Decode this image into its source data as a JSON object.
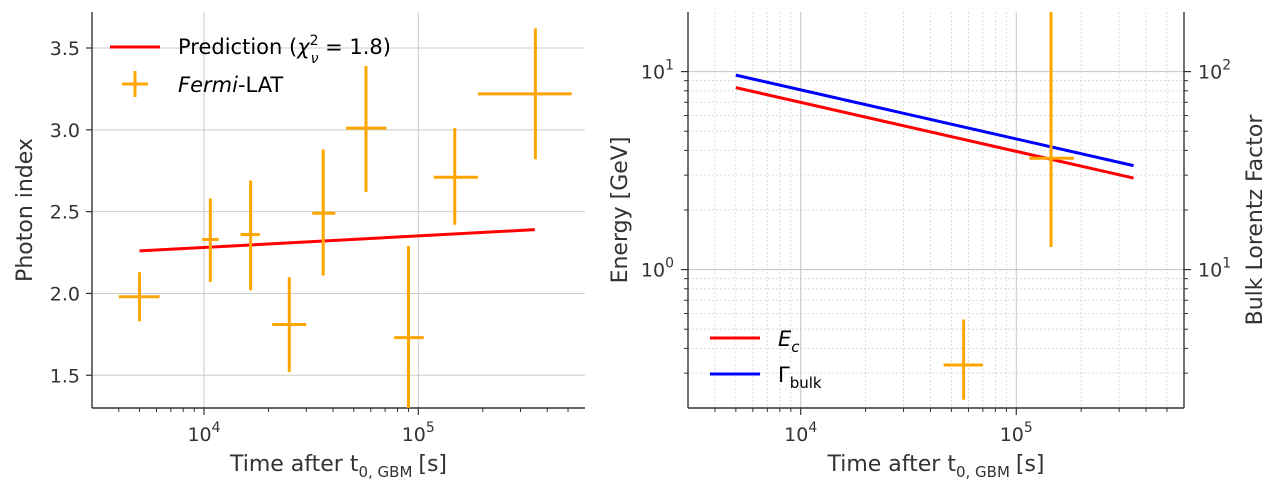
{
  "chart_data": [
    {
      "type": "scatter",
      "title": "",
      "xlabel": "Time after t",
      "xlabel_sub": "0, GBM",
      "xlabel_unit": "[s]",
      "ylabel": "Photon index",
      "xscale": "log",
      "xlim": [
        3000,
        600000
      ],
      "ylim": [
        1.3,
        3.72
      ],
      "yticks": [
        "1.5",
        "2.0",
        "2.5",
        "3.0",
        "3.5"
      ],
      "xticks_major": [
        {
          "base": "10",
          "exp": "4",
          "value": 10000
        },
        {
          "base": "10",
          "exp": "5",
          "value": 100000
        }
      ],
      "grid": true,
      "legend_position": "top-left",
      "colors": {
        "prediction": "#ff0000",
        "fermi": "#ffa500"
      },
      "legend": {
        "prediction_label": "Prediction (",
        "prediction_symbol": "χ",
        "prediction_sup": "2",
        "prediction_sub": "ν",
        "prediction_value": " = 1.8)",
        "fermi_italic": "Fermi",
        "fermi_rest": "-LAT"
      },
      "series": [
        {
          "name": "Prediction",
          "kind": "line",
          "x": [
            5000,
            350000
          ],
          "y": [
            2.26,
            2.39
          ]
        },
        {
          "name": "Fermi-LAT",
          "kind": "errorbar",
          "points": [
            {
              "x": 5000,
              "xlo": 4000,
              "xhi": 6200,
              "y": 1.98,
              "ylo": 1.83,
              "yhi": 2.13
            },
            {
              "x": 10700,
              "xlo": 9800,
              "xhi": 11700,
              "y": 2.33,
              "ylo": 2.07,
              "yhi": 2.58
            },
            {
              "x": 16500,
              "xlo": 14800,
              "xhi": 18200,
              "y": 2.36,
              "ylo": 2.02,
              "yhi": 2.69
            },
            {
              "x": 25000,
              "xlo": 20800,
              "xhi": 30000,
              "y": 1.81,
              "ylo": 1.52,
              "yhi": 2.1
            },
            {
              "x": 36000,
              "xlo": 32000,
              "xhi": 41000,
              "y": 2.49,
              "ylo": 2.11,
              "yhi": 2.88
            },
            {
              "x": 57000,
              "xlo": 46000,
              "xhi": 71000,
              "y": 3.01,
              "ylo": 2.62,
              "yhi": 3.39
            },
            {
              "x": 90000,
              "xlo": 77000,
              "xhi": 106000,
              "y": 1.73,
              "ylo": 1.3,
              "yhi": 2.29
            },
            {
              "x": 148000,
              "xlo": 118000,
              "xhi": 190000,
              "y": 2.71,
              "ylo": 2.42,
              "yhi": 3.01
            },
            {
              "x": 352000,
              "xlo": 190000,
              "xhi": 520000,
              "y": 3.22,
              "ylo": 2.82,
              "yhi": 3.62
            }
          ]
        }
      ]
    },
    {
      "type": "line",
      "title": "",
      "xlabel": "Time after t",
      "xlabel_sub": "0, GBM",
      "xlabel_unit": "[s]",
      "ylabel": "Energy [GeV]",
      "ylabel_right": "Bulk Lorentz Factor",
      "xscale": "log",
      "yscale": "log",
      "xlim": [
        3000,
        600000
      ],
      "ylim": [
        0.2,
        20
      ],
      "yticks_major": [
        {
          "base": "10",
          "exp": "0",
          "value": 1
        },
        {
          "base": "10",
          "exp": "1",
          "value": 10
        }
      ],
      "xticks_major": [
        {
          "base": "10",
          "exp": "4",
          "value": 10000
        },
        {
          "base": "10",
          "exp": "5",
          "value": 100000
        }
      ],
      "right_axis_ylim": [
        2,
        200
      ],
      "right_yticks_major": [
        {
          "base": "10",
          "exp": "1",
          "value": 10
        },
        {
          "base": "10",
          "exp": "2",
          "value": 100
        }
      ],
      "grid": true,
      "legend_position": "bottom-left",
      "colors": {
        "ec": "#ff0000",
        "gamma": "#0000ff",
        "fermi": "#ffa500"
      },
      "legend": {
        "ec_main": "E",
        "ec_sub": "c",
        "gamma_main": "Γ",
        "gamma_sub": "bulk"
      },
      "series": [
        {
          "name": "E_c",
          "kind": "line",
          "axis": "left",
          "x": [
            5000,
            350000
          ],
          "y": [
            8.3,
            2.9
          ]
        },
        {
          "name": "Gamma_bulk",
          "kind": "line",
          "axis": "right",
          "x": [
            5000,
            350000
          ],
          "y": [
            96,
            33.5
          ]
        },
        {
          "name": "Fermi-LAT",
          "kind": "errorbar",
          "axis": "left",
          "points": [
            {
              "x": 57000,
              "xlo": 46000,
              "xhi": 70000,
              "y": 0.33,
              "ylo": 0.22,
              "yhi": 0.56
            },
            {
              "x": 145000,
              "xlo": 115000,
              "xhi": 185000,
              "y": 3.65,
              "ylo": 1.3,
              "yhi": 20
            }
          ]
        }
      ]
    }
  ]
}
